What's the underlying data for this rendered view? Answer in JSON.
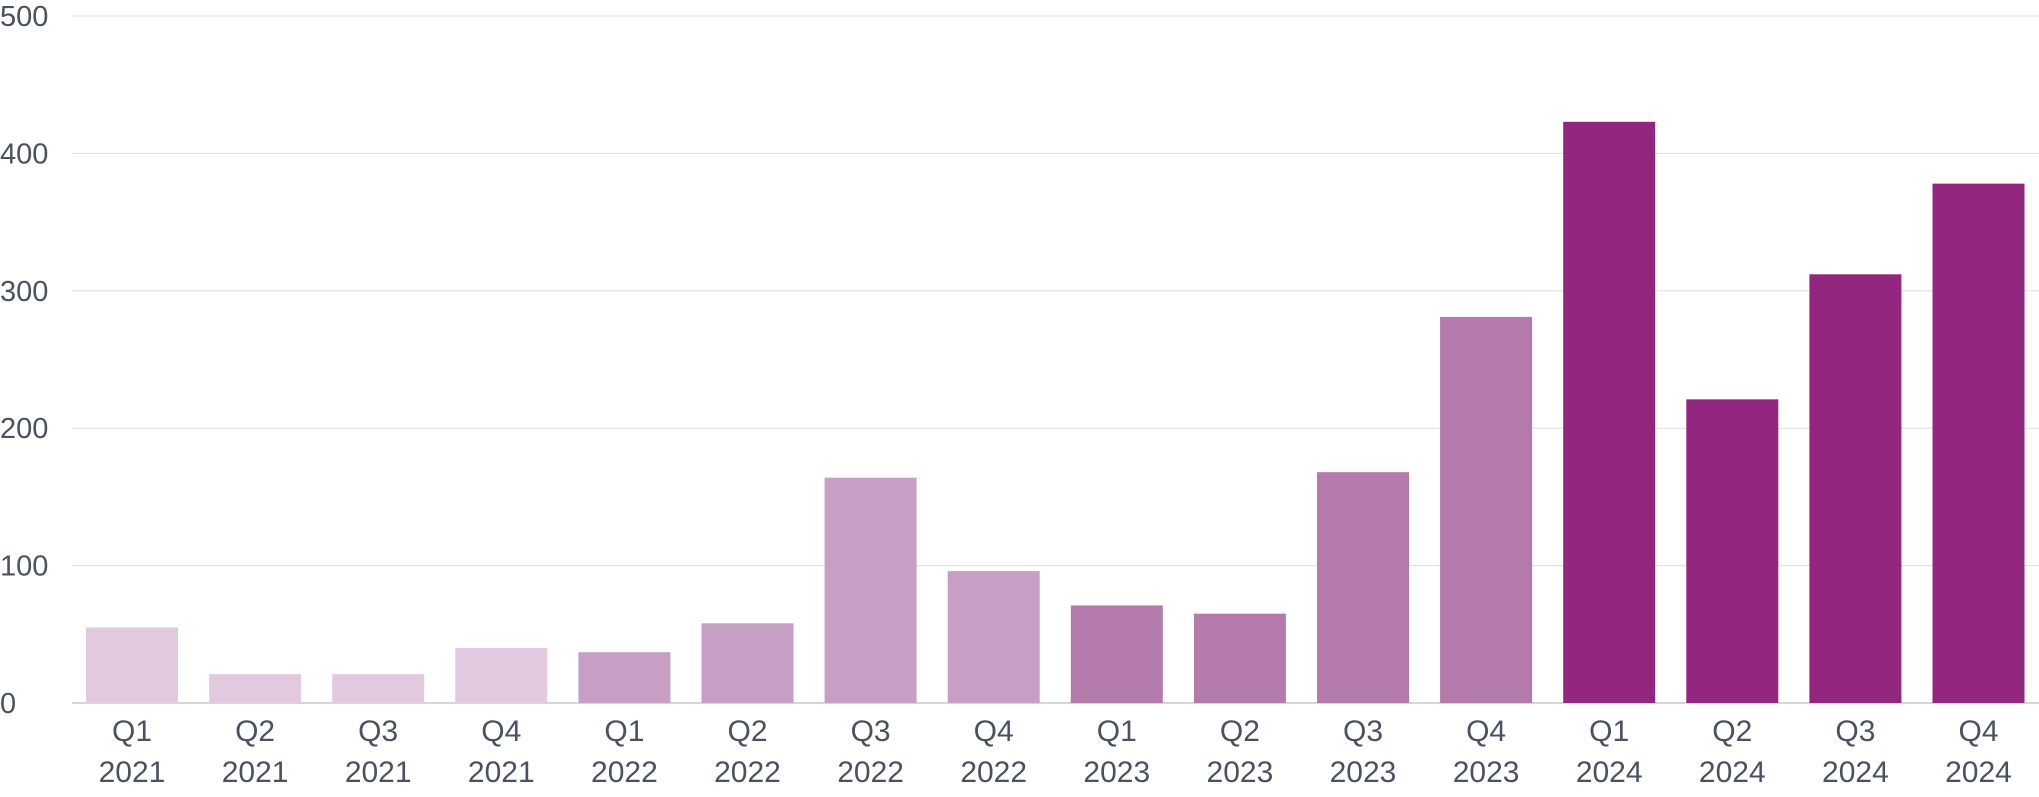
{
  "chart_data": {
    "type": "bar",
    "title": "",
    "xlabel": "",
    "ylabel": "",
    "ylim": [
      0,
      500
    ],
    "yticks": [
      0,
      100,
      200,
      300,
      400,
      500
    ],
    "grid": true,
    "legend": "none",
    "categories": [
      [
        "Q1",
        "2021"
      ],
      [
        "Q2",
        "2021"
      ],
      [
        "Q3",
        "2021"
      ],
      [
        "Q4",
        "2021"
      ],
      [
        "Q1",
        "2022"
      ],
      [
        "Q2",
        "2022"
      ],
      [
        "Q3",
        "2022"
      ],
      [
        "Q4",
        "2022"
      ],
      [
        "Q1",
        "2023"
      ],
      [
        "Q2",
        "2023"
      ],
      [
        "Q3",
        "2023"
      ],
      [
        "Q4",
        "2023"
      ],
      [
        "Q1",
        "2024"
      ],
      [
        "Q2",
        "2024"
      ],
      [
        "Q3",
        "2024"
      ],
      [
        "Q4",
        "2024"
      ]
    ],
    "values": [
      55,
      21,
      21,
      40,
      37,
      58,
      164,
      96,
      71,
      65,
      168,
      281,
      423,
      221,
      312,
      378
    ],
    "year_colors": {
      "2021": "#e1c9df",
      "2022": "#c89fc4",
      "2023": "#b37aab",
      "2024": "#93267f"
    },
    "colors": {
      "axis_text": "#4a5160",
      "grid": "#dcdde0",
      "baseline": "#c9cacd"
    }
  }
}
